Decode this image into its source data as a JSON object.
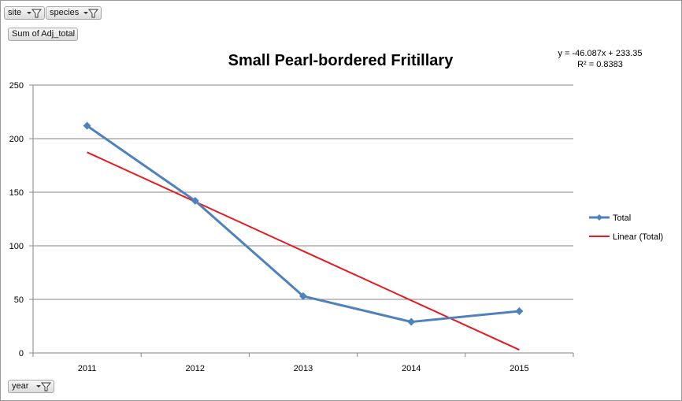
{
  "pivot": {
    "filters": [
      {
        "label": "site"
      },
      {
        "label": "species"
      }
    ],
    "value_field": "Sum of Adj_total",
    "axis_field": "year"
  },
  "trendline": {
    "equation": "y = -46.087x + 233.35",
    "r2_label": "R² = 0.8383"
  },
  "colors": {
    "series": "#4F81BD",
    "trend": "#E8191E",
    "grid": "#868686"
  },
  "chart_data": {
    "type": "line",
    "title": "Small Pearl-bordered Fritillary",
    "categories": [
      "2011",
      "2012",
      "2013",
      "2014",
      "2015"
    ],
    "series": [
      {
        "name": "Total",
        "values": [
          212,
          142,
          53,
          29,
          39
        ]
      },
      {
        "name": "Linear (Total)",
        "values": [
          187.26,
          141.18,
          95.09,
          49.0,
          2.92
        ]
      }
    ],
    "yticks": [
      "0",
      "50",
      "100",
      "150",
      "200",
      "250"
    ],
    "ylim": [
      0,
      250
    ],
    "grid": true,
    "legend_position": "right"
  }
}
